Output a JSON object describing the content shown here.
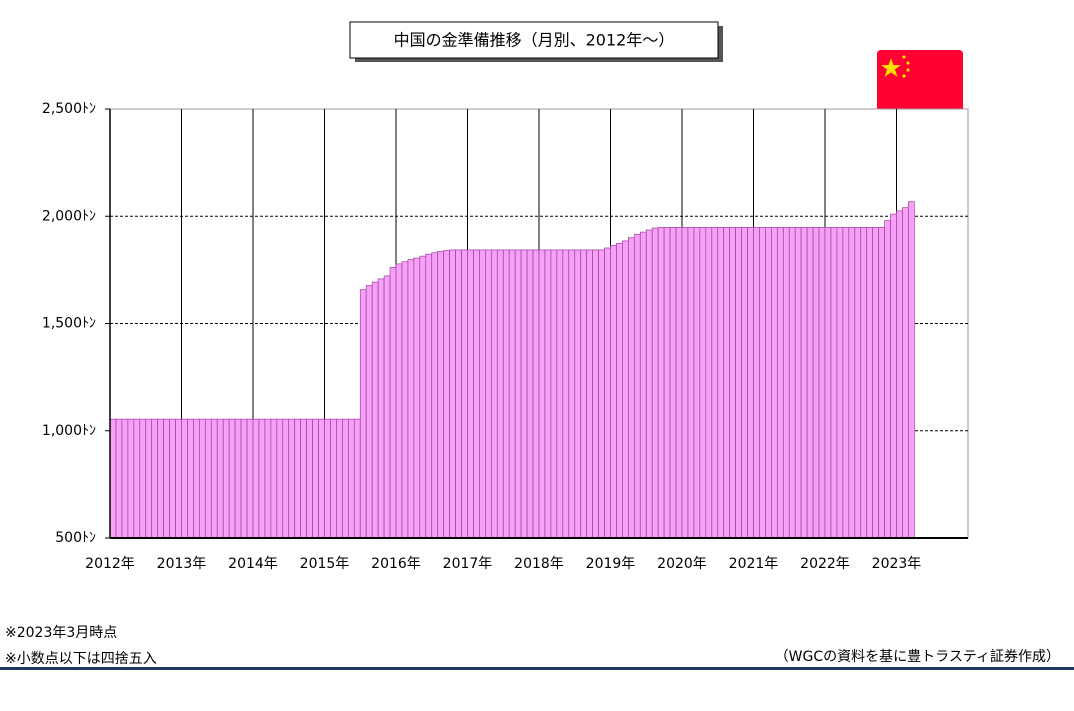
{
  "chart_data": {
    "type": "bar",
    "title": "中国の金準備推移（月別、2012年～）",
    "notes": [
      "※2023年3月時点",
      "※小数点以下は四捨五入"
    ],
    "source": "（WGCの資料を基に豊トラスティ証券作成）",
    "color": "#f7a0f7",
    "ylim": [
      500,
      2500
    ],
    "yticks": [
      {
        "value": 500,
        "label": "500ﾄﾝ"
      },
      {
        "value": 1000,
        "label": "1,000ﾄﾝ"
      },
      {
        "value": 1500,
        "label": "1,500ﾄﾝ"
      },
      {
        "value": 2000,
        "label": "2,000ﾄﾝ"
      },
      {
        "value": 2500,
        "label": "2,500ﾄﾝ"
      }
    ],
    "grid": true,
    "categories": [
      "2012年",
      null,
      null,
      null,
      null,
      null,
      null,
      null,
      null,
      null,
      null,
      null,
      "2013年",
      null,
      null,
      null,
      null,
      null,
      null,
      null,
      null,
      null,
      null,
      null,
      "2014年",
      null,
      null,
      null,
      null,
      null,
      null,
      null,
      null,
      null,
      null,
      null,
      "2015年",
      null,
      null,
      null,
      null,
      null,
      null,
      null,
      null,
      null,
      null,
      null,
      "2016年",
      null,
      null,
      null,
      null,
      null,
      null,
      null,
      null,
      null,
      null,
      null,
      "2017年",
      null,
      null,
      null,
      null,
      null,
      null,
      null,
      null,
      null,
      null,
      null,
      "2018年",
      null,
      null,
      null,
      null,
      null,
      null,
      null,
      null,
      null,
      null,
      null,
      "2019年",
      null,
      null,
      null,
      null,
      null,
      null,
      null,
      null,
      null,
      null,
      null,
      "2020年",
      null,
      null,
      null,
      null,
      null,
      null,
      null,
      null,
      null,
      null,
      null,
      "2021年",
      null,
      null,
      null,
      null,
      null,
      null,
      null,
      null,
      null,
      null,
      null,
      "2022年",
      null,
      null,
      null,
      null,
      null,
      null,
      null,
      null,
      null,
      null,
      null,
      "2023年",
      null,
      null,
      null,
      null,
      null,
      null,
      null,
      null,
      null,
      null,
      null
    ],
    "values": [
      1054,
      1054,
      1054,
      1054,
      1054,
      1054,
      1054,
      1054,
      1054,
      1054,
      1054,
      1054,
      1054,
      1054,
      1054,
      1054,
      1054,
      1054,
      1054,
      1054,
      1054,
      1054,
      1054,
      1054,
      1054,
      1054,
      1054,
      1054,
      1054,
      1054,
      1054,
      1054,
      1054,
      1054,
      1054,
      1054,
      1054,
      1054,
      1054,
      1054,
      1054,
      1054,
      1658,
      1677,
      1693,
      1708,
      1722,
      1762,
      1778,
      1788,
      1798,
      1805,
      1814,
      1823,
      1830,
      1836,
      1840,
      1843,
      1843,
      1843,
      1843,
      1843,
      1843,
      1843,
      1843,
      1843,
      1843,
      1843,
      1843,
      1843,
      1843,
      1843,
      1843,
      1843,
      1843,
      1843,
      1843,
      1843,
      1843,
      1843,
      1843,
      1843,
      1843,
      1852,
      1864,
      1874,
      1885,
      1900,
      1916,
      1926,
      1936,
      1945,
      1948,
      1948,
      1948,
      1948,
      1948,
      1948,
      1948,
      1948,
      1948,
      1948,
      1948,
      1948,
      1948,
      1948,
      1948,
      1948,
      1948,
      1948,
      1948,
      1948,
      1948,
      1948,
      1948,
      1948,
      1948,
      1948,
      1948,
      1948,
      1948,
      1948,
      1948,
      1948,
      1948,
      1948,
      1948,
      1948,
      1948,
      1948,
      1980,
      2010,
      2025,
      2040,
      2068,
      null,
      null,
      null,
      null,
      null,
      null,
      null,
      null,
      null
    ]
  }
}
